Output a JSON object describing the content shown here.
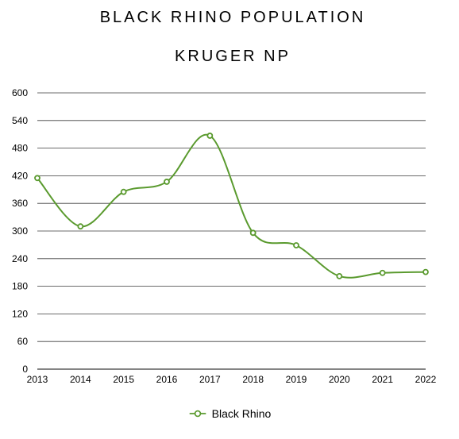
{
  "title_line1": "BLACK RHINO POPULATION",
  "title_line2": "KRUGER NP",
  "colors": {
    "series": "#5a9a2e",
    "grid": "#3a3a3a"
  },
  "chart_data": {
    "type": "line",
    "title": "BLACK RHINO POPULATION KRUGER NP",
    "xlabel": "",
    "ylabel": "",
    "ylim": [
      0,
      600
    ],
    "yticks": [
      "0",
      "60",
      "120",
      "180",
      "240",
      "300",
      "360",
      "420",
      "480",
      "540",
      "600"
    ],
    "categories": [
      "2013",
      "2014",
      "2015",
      "2016",
      "2017",
      "2018",
      "2019",
      "2020",
      "2021",
      "2022"
    ],
    "series": [
      {
        "name": "Black Rhino",
        "values": [
          415,
          310,
          385,
          407,
          507,
          296,
          269,
          202,
          209,
          211
        ],
        "smooth": true,
        "markers": "hollow-circle"
      }
    ],
    "grid": "horizontal",
    "legend": "bottom-center"
  }
}
